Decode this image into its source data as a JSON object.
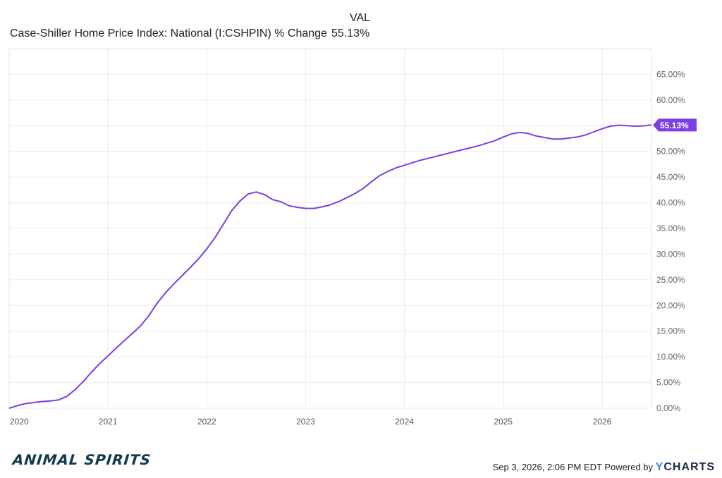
{
  "legend": {
    "column_header": "VAL",
    "series_label": "Case-Shiller Home Price Index: National (I:CSHPIN) % Change",
    "series_value": "55.13%"
  },
  "footer": {
    "timestamp": "Sep 3, 2026, 2:06 PM EDT Powered by",
    "brand_y": "Y",
    "brand_rest": "CHARTS"
  },
  "logo_text": "ANIMAL SPIRITS",
  "chart_data": {
    "type": "line",
    "x_ticks": [
      "2020",
      "2021",
      "2022",
      "2023",
      "2024",
      "2025",
      "2026"
    ],
    "y_ticks": [
      "0.00%",
      "5.00%",
      "10.00%",
      "15.00%",
      "20.00%",
      "25.00%",
      "30.00%",
      "35.00%",
      "40.00%",
      "45.00%",
      "50.00%",
      "55.00%",
      "60.00%",
      "65.00%"
    ],
    "xlim": [
      2020.0,
      2026.5
    ],
    "ylim": [
      0,
      70
    ],
    "grid": true,
    "line_color": "#7b3fe4",
    "end_label": "55.13%",
    "series": [
      {
        "name": "Case-Shiller Home Price Index: National (I:CSHPIN) % Change",
        "x": [
          2020.0,
          2020.083,
          2020.167,
          2020.25,
          2020.333,
          2020.417,
          2020.5,
          2020.583,
          2020.667,
          2020.75,
          2020.833,
          2020.917,
          2021.0,
          2021.083,
          2021.167,
          2021.25,
          2021.333,
          2021.417,
          2021.5,
          2021.583,
          2021.667,
          2021.75,
          2021.833,
          2021.917,
          2022.0,
          2022.083,
          2022.167,
          2022.25,
          2022.333,
          2022.417,
          2022.5,
          2022.583,
          2022.667,
          2022.75,
          2022.833,
          2022.917,
          2023.0,
          2023.083,
          2023.167,
          2023.25,
          2023.333,
          2023.417,
          2023.5,
          2023.583,
          2023.667,
          2023.75,
          2023.833,
          2023.917,
          2024.0,
          2024.083,
          2024.167,
          2024.25,
          2024.333,
          2024.417,
          2024.5,
          2024.583,
          2024.667,
          2024.75,
          2024.833,
          2024.917,
          2025.0,
          2025.083,
          2025.167,
          2025.25,
          2025.333,
          2025.417,
          2025.5,
          2025.583,
          2025.667,
          2025.75,
          2025.833,
          2025.917,
          2026.0,
          2026.083,
          2026.167,
          2026.25,
          2026.333,
          2026.417,
          2026.5
        ],
        "values": [
          0.0,
          0.5,
          0.9,
          1.1,
          1.3,
          1.4,
          1.6,
          2.3,
          3.6,
          5.2,
          7.0,
          8.7,
          10.2,
          11.7,
          13.2,
          14.6,
          16.1,
          18.1,
          20.5,
          22.5,
          24.2,
          25.8,
          27.4,
          29.1,
          31.0,
          33.2,
          35.8,
          38.4,
          40.3,
          41.7,
          42.1,
          41.6,
          40.6,
          40.2,
          39.4,
          39.1,
          38.9,
          38.9,
          39.2,
          39.6,
          40.2,
          41.0,
          41.8,
          42.8,
          44.1,
          45.3,
          46.1,
          46.8,
          47.3,
          47.8,
          48.3,
          48.7,
          49.1,
          49.5,
          49.9,
          50.3,
          50.7,
          51.1,
          51.6,
          52.1,
          52.8,
          53.4,
          53.7,
          53.5,
          53.0,
          52.7,
          52.4,
          52.4,
          52.6,
          52.8,
          53.2,
          53.8,
          54.4,
          54.9,
          55.1,
          55.0,
          54.9,
          54.95,
          55.13
        ]
      }
    ]
  }
}
